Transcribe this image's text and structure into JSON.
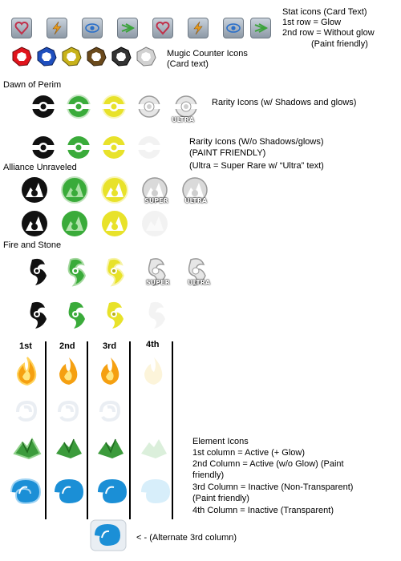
{
  "stat_icons": {
    "title": "Stat icons (Card Text)",
    "line1": "1st row = Glow",
    "line2": "2nd row = Without glow",
    "line3": "(Paint friendly)"
  },
  "mugic": {
    "title": "Mugic Counter Icons",
    "line2": "(Card text)"
  },
  "sections": {
    "dawn": "Dawn of Perim",
    "alliance": "Alliance Unraveled",
    "fire": "Fire and Stone"
  },
  "rarity": {
    "glow": "Rarity Icons (w/ Shadows and glows)",
    "noglow1": "Rarity Icons (W/o Shadows/glows)",
    "noglow2": "(PAINT FRIENDLY)",
    "ultra_note": "(Ultra = Super Rare w/ “Ultra” text)"
  },
  "badges": {
    "ultra": "ULTRA",
    "super": "SUPER"
  },
  "columns": [
    "1st",
    "2nd",
    "3rd",
    "4th"
  ],
  "elements": {
    "title": "Element Icons",
    "c1": "1st column = Active (+ Glow)",
    "c2a": "2nd Column = Active (w/o Glow) (Paint",
    "c2b": "friendly)",
    "c3a": "3rd Column = Inactive (Non-Transparent)",
    "c3b": "(Paint friendly)",
    "c4": "4th Column = Inactive (Transparent)",
    "alternate": "< - (Alternate 3rd column)"
  },
  "colors": {
    "gold_bg": "#dcc15c",
    "mugic": [
      "#e0141c",
      "#1f4fbe",
      "#c8b21a",
      "#6b4a1c",
      "#333333",
      "#bdbdbd"
    ],
    "rarity": [
      "#111111",
      "#3aab3a",
      "#e8e22a",
      "#dcdcdc"
    ],
    "fire": "#f5a011",
    "earth": "#3c9b3c",
    "water": "#1b8fd6"
  }
}
